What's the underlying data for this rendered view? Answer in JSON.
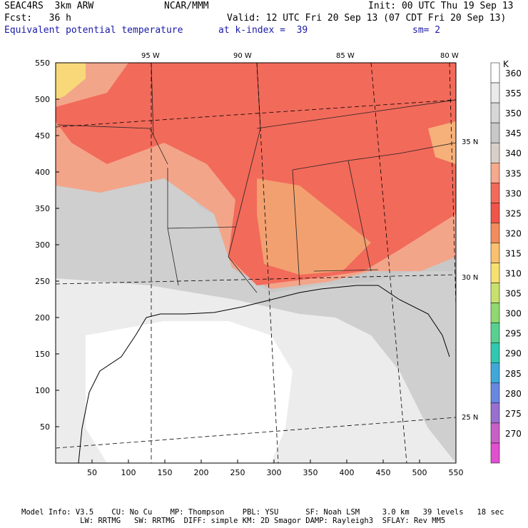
{
  "header": {
    "model": "SEAC4RS  3km ARW",
    "org": "NCAR/MMM",
    "init": "Init: 00 UTC Thu 19 Sep 13",
    "fcst": "Fcst:   36 h",
    "valid": "Valid: 12 UTC Fri 20 Sep 13 (07 CDT Fri 20 Sep 13)",
    "field": "Equivalent potential temperature",
    "level": "at k-index =  39",
    "smooth": "sm= 2"
  },
  "map": {
    "x_ticks": [
      "50",
      "100",
      "150",
      "200",
      "250",
      "300",
      "350",
      "400",
      "450",
      "500",
      "550"
    ],
    "y_ticks": [
      "550",
      "500",
      "450",
      "400",
      "350",
      "300",
      "250",
      "200",
      "150",
      "100",
      "50"
    ],
    "lon_labels": [
      "95 W",
      "90 W",
      "85 W",
      "80 W"
    ],
    "lat_labels": [
      "35 N",
      "30 N",
      "25 N"
    ]
  },
  "colorbar": {
    "unit": "K",
    "levels": [
      "360",
      "355",
      "350",
      "345",
      "340",
      "335",
      "330",
      "325",
      "320",
      "315",
      "310",
      "305",
      "300",
      "295",
      "290",
      "285",
      "280",
      "275",
      "270"
    ],
    "colors": [
      "#ffffff",
      "#ebebeb",
      "#d7d7d7",
      "#c8c8c8",
      "#d8cfc6",
      "#f6a98c",
      "#f36a5a",
      "#ef5548",
      "#f28c5c",
      "#f8c070",
      "#f8e070",
      "#c8e070",
      "#90d870",
      "#58d090",
      "#30c8b0",
      "#40a8d8",
      "#6888e0",
      "#9870d0",
      "#c860c8",
      "#e050d0"
    ]
  },
  "footer": {
    "line1": "Model Info: V3.5    CU: No Cu    MP: Thompson    PBL: YSU      SF: Noah LSM     3.0 km   39 levels   18 sec",
    "line2": "             LW: RRTMG   SW: RRTMG  DIFF: simple KM: 2D Smagor DAMP: Rayleigh3  SFLAY: Rev MM5"
  }
}
